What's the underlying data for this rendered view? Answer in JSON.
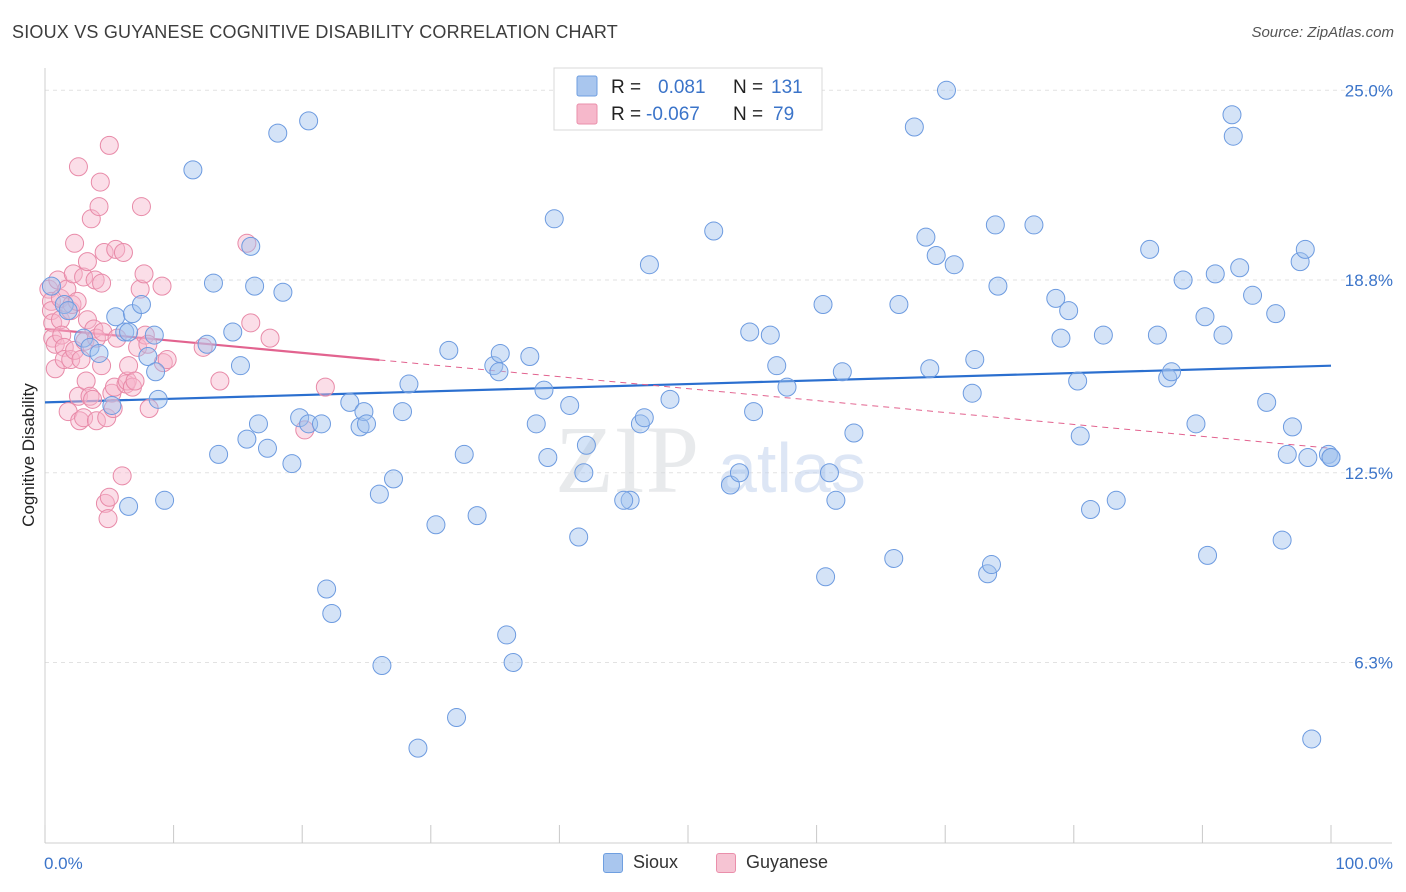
{
  "title": "SIOUX VS GUYANESE COGNITIVE DISABILITY CORRELATION CHART",
  "source": "Source: ZipAtlas.com",
  "watermark": {
    "zip": "ZIP",
    "atlas": "atlas"
  },
  "legend": {
    "rows": [
      {
        "r_label": "R =",
        "r_value": "0.081",
        "n_label": "N =",
        "n_value": "131",
        "color": "#a9c6ee"
      },
      {
        "r_label": "R =",
        "r_value": "-0.067",
        "n_label": "N =",
        "n_value": "79",
        "color": "#f6b8cb"
      }
    ]
  },
  "bottom_legend": [
    {
      "label": "Sioux",
      "color": "#a9c6ee",
      "border": "#6f9fe0"
    },
    {
      "label": "Guyanese",
      "color": "#f6c4d3",
      "border": "#ea8fab"
    }
  ],
  "colors": {
    "sioux_fill": "rgba(160,192,238,0.45)",
    "sioux_stroke": "#6d9be0",
    "sioux_line": "#2b6fcf",
    "guy_fill": "rgba(246,182,204,0.45)",
    "guy_stroke": "#e88aa8",
    "guy_line": "#e2638f",
    "accent_text": "#3b74c9"
  },
  "chart_data": {
    "type": "scatter",
    "title": "SIOUX VS GUYANESE COGNITIVE DISABILITY CORRELATION CHART",
    "xlabel": "",
    "ylabel": "Cognitive Disability",
    "xlim": [
      0,
      100
    ],
    "ylim": [
      0.4,
      25.5
    ],
    "x_tick_labels": [
      {
        "value": 0,
        "label": "0.0%"
      },
      {
        "value": 100,
        "label": "100.0%"
      }
    ],
    "y_tick_labels": [
      {
        "value": 25.0,
        "label": "25.0%"
      },
      {
        "value": 18.8,
        "label": "18.8%"
      },
      {
        "value": 12.5,
        "label": "12.5%"
      },
      {
        "value": 6.3,
        "label": "6.3%"
      }
    ],
    "series": [
      {
        "name": "Sioux",
        "R": 0.081,
        "N": 131,
        "trend": {
          "x0": 0,
          "y0": 14.8,
          "x1": 100,
          "y1": 16.0,
          "solid_until": 100
        },
        "points": [
          [
            0.5,
            18.6
          ],
          [
            1.5,
            18.0
          ],
          [
            1.8,
            17.8
          ],
          [
            3.0,
            16.9
          ],
          [
            3.5,
            16.6
          ],
          [
            4.2,
            16.4
          ],
          [
            5.5,
            17.6
          ],
          [
            5.2,
            14.7
          ],
          [
            6.2,
            17.1
          ],
          [
            6.5,
            11.4
          ],
          [
            6.5,
            17.1
          ],
          [
            6.8,
            17.7
          ],
          [
            7.5,
            18.0
          ],
          [
            8.0,
            16.3
          ],
          [
            8.6,
            15.8
          ],
          [
            8.8,
            14.9
          ],
          [
            9.3,
            11.6
          ],
          [
            8.5,
            17.0
          ],
          [
            11.5,
            22.4
          ],
          [
            12.6,
            16.7
          ],
          [
            13.1,
            18.7
          ],
          [
            13.5,
            13.1
          ],
          [
            14.6,
            17.1
          ],
          [
            15.2,
            16.0
          ],
          [
            15.7,
            13.6
          ],
          [
            16.0,
            19.9
          ],
          [
            16.3,
            18.6
          ],
          [
            16.6,
            14.1
          ],
          [
            17.3,
            13.3
          ],
          [
            18.1,
            23.6
          ],
          [
            18.5,
            18.4
          ],
          [
            19.2,
            12.8
          ],
          [
            19.8,
            14.3
          ],
          [
            20.5,
            14.1
          ],
          [
            20.5,
            24.0
          ],
          [
            21.5,
            14.1
          ],
          [
            21.9,
            8.7
          ],
          [
            22.3,
            7.9
          ],
          [
            23.7,
            14.8
          ],
          [
            24.5,
            14.0
          ],
          [
            24.8,
            14.5
          ],
          [
            25.0,
            14.1
          ],
          [
            26.0,
            11.8
          ],
          [
            26.2,
            6.2
          ],
          [
            27.1,
            12.3
          ],
          [
            27.8,
            14.5
          ],
          [
            28.3,
            15.4
          ],
          [
            29.0,
            3.5
          ],
          [
            30.4,
            10.8
          ],
          [
            31.4,
            16.5
          ],
          [
            32.0,
            4.5
          ],
          [
            32.6,
            13.1
          ],
          [
            33.6,
            11.1
          ],
          [
            34.9,
            16.0
          ],
          [
            35.4,
            16.4
          ],
          [
            35.9,
            7.2
          ],
          [
            36.4,
            6.3
          ],
          [
            37.7,
            16.3
          ],
          [
            38.2,
            14.1
          ],
          [
            38.8,
            15.2
          ],
          [
            39.1,
            13.0
          ],
          [
            39.6,
            20.8
          ],
          [
            40.8,
            14.7
          ],
          [
            41.5,
            10.4
          ],
          [
            41.9,
            12.5
          ],
          [
            42.1,
            13.4
          ],
          [
            45.5,
            11.6
          ],
          [
            46.3,
            14.1
          ],
          [
            46.6,
            14.3
          ],
          [
            47.0,
            19.3
          ],
          [
            48.2,
            24.6
          ],
          [
            48.6,
            14.9
          ],
          [
            52.0,
            20.4
          ],
          [
            53.3,
            12.1
          ],
          [
            54.0,
            12.5
          ],
          [
            54.8,
            17.1
          ],
          [
            55.1,
            14.5
          ],
          [
            56.4,
            17.0
          ],
          [
            56.9,
            16.0
          ],
          [
            57.7,
            15.3
          ],
          [
            60.5,
            18.0
          ],
          [
            60.7,
            9.1
          ],
          [
            61.0,
            12.5
          ],
          [
            61.5,
            11.6
          ],
          [
            62.0,
            15.8
          ],
          [
            62.9,
            13.8
          ],
          [
            66.0,
            9.7
          ],
          [
            66.4,
            18.0
          ],
          [
            67.6,
            23.8
          ],
          [
            68.5,
            20.2
          ],
          [
            68.8,
            15.9
          ],
          [
            69.3,
            19.6
          ],
          [
            70.1,
            25.0
          ],
          [
            70.7,
            19.3
          ],
          [
            72.1,
            15.1
          ],
          [
            72.3,
            16.2
          ],
          [
            73.3,
            9.2
          ],
          [
            73.6,
            9.5
          ],
          [
            73.9,
            20.6
          ],
          [
            74.1,
            18.6
          ],
          [
            76.9,
            20.6
          ],
          [
            78.6,
            18.2
          ],
          [
            79.0,
            16.9
          ],
          [
            79.6,
            17.8
          ],
          [
            80.3,
            15.5
          ],
          [
            81.3,
            11.3
          ],
          [
            82.3,
            17.0
          ],
          [
            83.3,
            11.6
          ],
          [
            85.9,
            19.8
          ],
          [
            86.5,
            17.0
          ],
          [
            87.3,
            15.6
          ],
          [
            87.6,
            15.8
          ],
          [
            88.5,
            18.8
          ],
          [
            89.5,
            14.1
          ],
          [
            90.2,
            17.6
          ],
          [
            90.4,
            9.8
          ],
          [
            91.0,
            19.0
          ],
          [
            91.6,
            17.0
          ],
          [
            92.3,
            24.2
          ],
          [
            92.4,
            23.5
          ],
          [
            92.9,
            19.2
          ],
          [
            93.9,
            18.3
          ],
          [
            95.0,
            14.8
          ],
          [
            95.7,
            17.7
          ],
          [
            96.2,
            10.3
          ],
          [
            96.6,
            13.1
          ],
          [
            97.6,
            19.4
          ],
          [
            98.0,
            19.8
          ],
          [
            98.5,
            3.8
          ],
          [
            99.8,
            13.1
          ],
          [
            100.0,
            13.0
          ],
          [
            100.0,
            13.0
          ],
          [
            98.2,
            13.0
          ],
          [
            97.0,
            14.0
          ],
          [
            80.5,
            13.7
          ],
          [
            45.0,
            11.6
          ],
          [
            35.3,
            15.8
          ]
        ]
      },
      {
        "name": "Guyanese",
        "R": -0.067,
        "N": 79,
        "trend": {
          "x0": 0,
          "y0": 17.2,
          "x1": 100,
          "y1": 13.3,
          "solid_until": 26
        },
        "points": [
          [
            0.3,
            18.5
          ],
          [
            0.5,
            18.1
          ],
          [
            0.5,
            17.8
          ],
          [
            0.6,
            17.4
          ],
          [
            0.6,
            16.9
          ],
          [
            0.8,
            16.7
          ],
          [
            0.8,
            15.9
          ],
          [
            1.0,
            18.8
          ],
          [
            1.2,
            18.2
          ],
          [
            1.2,
            17.5
          ],
          [
            1.3,
            17.0
          ],
          [
            1.5,
            16.6
          ],
          [
            1.5,
            16.2
          ],
          [
            1.7,
            18.5
          ],
          [
            1.8,
            14.5
          ],
          [
            2.0,
            17.8
          ],
          [
            2.0,
            16.2
          ],
          [
            2.1,
            18.0
          ],
          [
            2.2,
            19.0
          ],
          [
            2.3,
            16.5
          ],
          [
            2.3,
            20.0
          ],
          [
            2.5,
            18.1
          ],
          [
            2.6,
            22.5
          ],
          [
            2.6,
            15.0
          ],
          [
            2.7,
            14.2
          ],
          [
            2.8,
            16.2
          ],
          [
            3.0,
            14.3
          ],
          [
            3.0,
            18.9
          ],
          [
            3.1,
            16.8
          ],
          [
            3.2,
            15.5
          ],
          [
            3.3,
            17.5
          ],
          [
            3.3,
            19.4
          ],
          [
            3.5,
            15.0
          ],
          [
            3.6,
            20.8
          ],
          [
            3.7,
            14.9
          ],
          [
            3.8,
            17.2
          ],
          [
            3.9,
            18.8
          ],
          [
            4.0,
            16.9
          ],
          [
            4.0,
            14.2
          ],
          [
            4.2,
            21.2
          ],
          [
            4.3,
            22.0
          ],
          [
            4.4,
            18.7
          ],
          [
            4.4,
            16.0
          ],
          [
            4.5,
            17.1
          ],
          [
            4.6,
            19.7
          ],
          [
            4.7,
            11.5
          ],
          [
            4.8,
            14.3
          ],
          [
            4.9,
            11.0
          ],
          [
            5.0,
            23.2
          ],
          [
            5.0,
            11.7
          ],
          [
            5.2,
            15.1
          ],
          [
            5.3,
            14.6
          ],
          [
            5.4,
            15.3
          ],
          [
            5.5,
            19.8
          ],
          [
            5.6,
            16.9
          ],
          [
            6.0,
            12.4
          ],
          [
            6.1,
            19.7
          ],
          [
            6.3,
            15.4
          ],
          [
            6.4,
            15.5
          ],
          [
            6.5,
            16.0
          ],
          [
            6.8,
            15.3
          ],
          [
            7.0,
            15.5
          ],
          [
            7.2,
            16.6
          ],
          [
            7.4,
            18.5
          ],
          [
            7.5,
            21.2
          ],
          [
            7.7,
            19.0
          ],
          [
            7.8,
            17.0
          ],
          [
            8.0,
            16.7
          ],
          [
            8.1,
            14.6
          ],
          [
            9.1,
            18.6
          ],
          [
            9.2,
            16.1
          ],
          [
            9.5,
            16.2
          ],
          [
            12.3,
            16.6
          ],
          [
            13.6,
            15.5
          ],
          [
            15.7,
            20.0
          ],
          [
            16.0,
            17.4
          ],
          [
            17.5,
            16.9
          ],
          [
            20.2,
            13.9
          ],
          [
            21.8,
            15.3
          ]
        ]
      }
    ]
  }
}
